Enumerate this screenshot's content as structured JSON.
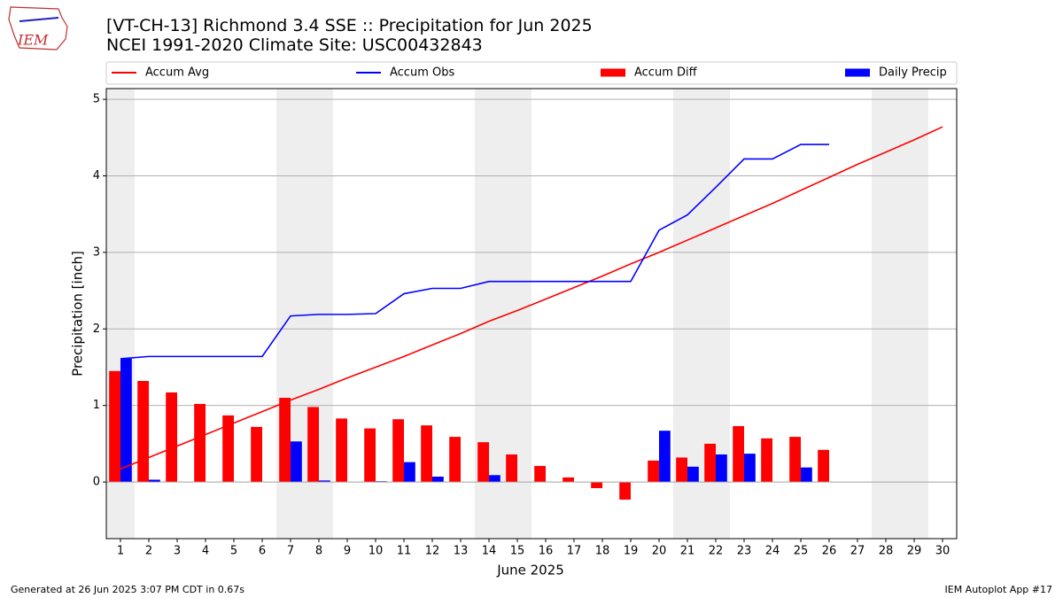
{
  "logo_text": "IEM",
  "footer_left": "Generated at 26 Jun 2025 3:07 PM CDT in 0.67s",
  "footer_right": "IEM Autoplot App #17",
  "chart_data": {
    "type": "combo",
    "title": "[VT-CH-13] Richmond 3.4 SSE :: Precipitation for Jun 2025",
    "subtitle": "NCEI 1991-2020 Climate Site: USC00432843",
    "x_label": "June 2025",
    "y_label": "Precipitation [inch]",
    "x": [
      1,
      2,
      3,
      4,
      5,
      6,
      7,
      8,
      9,
      10,
      11,
      12,
      13,
      14,
      15,
      16,
      17,
      18,
      19,
      20,
      21,
      22,
      23,
      24,
      25,
      26,
      27,
      28,
      29,
      30
    ],
    "xlim": [
      0.5,
      30.5
    ],
    "xticks": [
      1,
      2,
      3,
      4,
      5,
      6,
      7,
      8,
      9,
      10,
      11,
      12,
      13,
      14,
      15,
      16,
      17,
      18,
      19,
      20,
      21,
      22,
      23,
      24,
      25,
      26,
      27,
      28,
      29,
      30
    ],
    "ylim": [
      -0.74,
      5.14
    ],
    "yticks": [
      0,
      1,
      2,
      3,
      4,
      5
    ],
    "grid": true,
    "shaded_spans": [
      [
        0.5,
        1.5
      ],
      [
        6.5,
        8.5
      ],
      [
        13.5,
        15.5
      ],
      [
        20.5,
        22.5
      ],
      [
        27.5,
        29.5
      ]
    ],
    "shade_color": "#eeeeee",
    "series": [
      {
        "name": "Accum Avg",
        "type": "line",
        "color": "#ff0000",
        "values": [
          0.17,
          0.32,
          0.47,
          0.62,
          0.77,
          0.92,
          1.07,
          1.21,
          1.36,
          1.5,
          1.64,
          1.79,
          1.94,
          2.1,
          2.24,
          2.39,
          2.54,
          2.69,
          2.85,
          3.0,
          3.16,
          3.32,
          3.48,
          3.64,
          3.81,
          3.98,
          4.15,
          4.31,
          4.47,
          4.64
        ]
      },
      {
        "name": "Accum Obs",
        "type": "line",
        "color": "#0000ff",
        "values": [
          1.61,
          1.64,
          1.64,
          1.64,
          1.64,
          1.64,
          2.17,
          2.19,
          2.19,
          2.2,
          2.46,
          2.53,
          2.53,
          2.62,
          2.62,
          2.62,
          2.62,
          2.62,
          2.62,
          3.29,
          3.49,
          3.85,
          4.22,
          4.22,
          4.41,
          4.41,
          null,
          null,
          null,
          null
        ]
      },
      {
        "name": "Accum Diff",
        "type": "bar",
        "side": "left",
        "color": "#ff0000",
        "values": [
          1.45,
          1.32,
          1.17,
          1.02,
          0.87,
          0.72,
          1.1,
          0.98,
          0.83,
          0.7,
          0.82,
          0.74,
          0.59,
          0.52,
          0.36,
          0.21,
          0.06,
          -0.08,
          -0.23,
          0.28,
          0.32,
          0.5,
          0.73,
          0.57,
          0.59,
          0.42,
          null,
          null,
          null,
          null
        ]
      },
      {
        "name": "Daily Precip",
        "type": "bar",
        "side": "right",
        "color": "#0000ff",
        "values": [
          1.61,
          0.03,
          0,
          0,
          0,
          0,
          0.53,
          0.02,
          0,
          0.01,
          0.26,
          0.07,
          0,
          0.09,
          0,
          0,
          0,
          0,
          0,
          0.67,
          0.2,
          0.36,
          0.37,
          0,
          0.19,
          0,
          null,
          null,
          null,
          null
        ]
      }
    ]
  }
}
